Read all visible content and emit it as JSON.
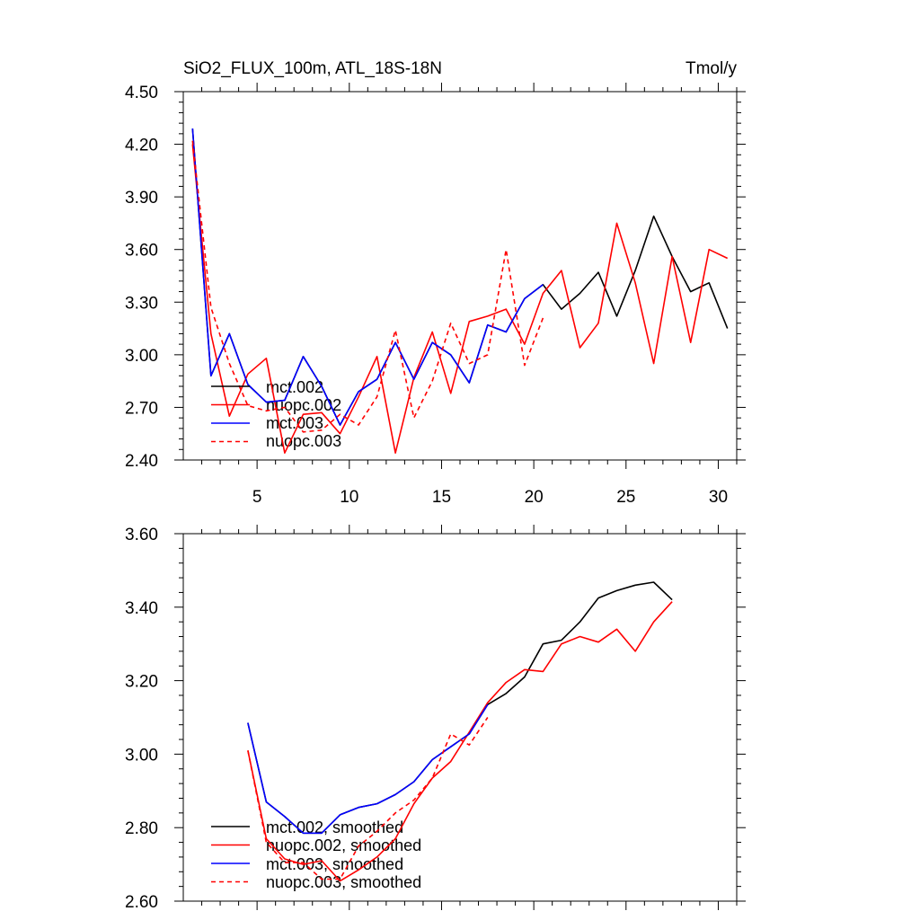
{
  "chart_data": [
    {
      "type": "line",
      "title": "SiO2_FLUX_100m, ATL_18S-18N",
      "units": "Tmol/y",
      "xlim": [
        1,
        31
      ],
      "ylim": [
        2.4,
        4.5
      ],
      "x_ticks": [
        5,
        10,
        15,
        20,
        25,
        30
      ],
      "x_tick_labels": [
        "5",
        "10",
        "15",
        "20",
        "25",
        "30"
      ],
      "y_ticks": [
        2.4,
        2.7,
        3.0,
        3.3,
        3.6,
        3.9,
        4.2,
        4.5
      ],
      "y_tick_labels": [
        "2.40",
        "2.70",
        "3.00",
        "3.30",
        "3.60",
        "3.90",
        "4.20",
        "4.50"
      ],
      "legend_position": "bottom-left",
      "series": [
        {
          "name": "mct.002",
          "color": "#000000",
          "dash": "solid",
          "x": [
            1.5,
            2.5,
            3.5,
            4.5,
            5.5,
            6.5,
            7.5,
            8.5,
            9.5,
            10.5,
            11.5,
            12.5,
            13.5,
            14.5,
            15.5,
            16.5,
            17.5,
            18.5,
            19.5,
            20.5,
            21.5,
            22.5,
            23.5,
            24.5,
            25.5,
            26.5,
            27.5,
            28.5,
            29.5,
            30.5
          ],
          "values": [
            4.29,
            2.88,
            3.12,
            2.83,
            2.73,
            2.74,
            2.99,
            2.82,
            2.6,
            2.79,
            2.86,
            3.07,
            2.86,
            3.07,
            3.0,
            2.84,
            3.17,
            3.13,
            3.32,
            3.4,
            3.26,
            3.35,
            3.47,
            3.22,
            3.48,
            3.79,
            3.56,
            3.36,
            3.41,
            3.15
          ]
        },
        {
          "name": "nuopc.002",
          "color": "#ff0000",
          "dash": "solid",
          "x": [
            1.5,
            2.5,
            3.5,
            4.5,
            5.5,
            6.5,
            7.5,
            8.5,
            9.5,
            10.5,
            11.5,
            12.5,
            13.5,
            14.5,
            15.5,
            16.5,
            17.5,
            18.5,
            19.5,
            20.5,
            21.5,
            22.5,
            23.5,
            24.5,
            25.5,
            26.5,
            27.5,
            28.5,
            29.5,
            30.5
          ],
          "values": [
            4.2,
            3.12,
            2.65,
            2.89,
            2.98,
            2.44,
            2.66,
            2.67,
            2.55,
            2.76,
            2.99,
            2.44,
            2.87,
            3.13,
            2.78,
            3.19,
            3.22,
            3.26,
            3.06,
            3.35,
            3.48,
            3.04,
            3.18,
            3.75,
            3.41,
            2.95,
            3.56,
            3.07,
            3.6,
            3.55
          ]
        },
        {
          "name": "mct.003",
          "color": "#0000ff",
          "dash": "solid",
          "x": [
            1.5,
            2.5,
            3.5,
            4.5,
            5.5,
            6.5,
            7.5,
            8.5,
            9.5,
            10.5,
            11.5,
            12.5,
            13.5,
            14.5,
            15.5,
            16.5,
            17.5,
            18.5,
            19.5,
            20.5
          ],
          "values": [
            4.29,
            2.88,
            3.12,
            2.83,
            2.73,
            2.74,
            2.99,
            2.82,
            2.6,
            2.79,
            2.86,
            3.07,
            2.86,
            3.07,
            3.0,
            2.84,
            3.17,
            3.13,
            3.32,
            3.4
          ]
        },
        {
          "name": "nuopc.003",
          "color": "#ff0000",
          "dash": "dashed",
          "x": [
            1.5,
            2.5,
            3.5,
            4.5,
            5.5,
            6.5,
            7.5,
            8.5,
            9.5,
            10.5,
            11.5,
            12.5,
            13.5,
            14.5,
            15.5,
            16.5,
            17.5,
            18.5,
            19.5,
            20.5
          ],
          "values": [
            4.22,
            3.27,
            2.95,
            2.71,
            2.68,
            2.7,
            2.56,
            2.57,
            2.66,
            2.6,
            2.76,
            3.14,
            2.64,
            2.85,
            3.18,
            2.95,
            3.0,
            3.6,
            2.94,
            3.21
          ]
        }
      ]
    },
    {
      "type": "line",
      "title": "",
      "xlim": [
        1,
        31
      ],
      "ylim": [
        2.6,
        3.6
      ],
      "x_ticks": [
        5,
        10,
        15,
        20,
        25,
        30
      ],
      "x_tick_labels": [],
      "y_ticks": [
        2.6,
        2.8,
        3.0,
        3.2,
        3.4,
        3.6
      ],
      "y_tick_labels": [
        "2.60",
        "2.80",
        "3.00",
        "3.20",
        "3.40",
        "3.60"
      ],
      "legend_position": "bottom-left",
      "series": [
        {
          "name": "mct.002, smoothed",
          "color": "#000000",
          "dash": "solid",
          "x": [
            4.5,
            5.5,
            6.5,
            7.5,
            8.5,
            9.5,
            10.5,
            11.5,
            12.5,
            13.5,
            14.5,
            15.5,
            16.5,
            17.5,
            18.5,
            19.5,
            20.5,
            21.5,
            22.5,
            23.5,
            24.5,
            25.5,
            26.5,
            27.5
          ],
          "values": [
            3.085,
            2.87,
            2.83,
            2.785,
            2.785,
            2.835,
            2.855,
            2.865,
            2.89,
            2.925,
            2.985,
            3.02,
            3.055,
            3.135,
            3.165,
            3.21,
            3.3,
            3.31,
            3.36,
            3.425,
            3.445,
            3.46,
            3.468,
            3.42
          ]
        },
        {
          "name": "nuopc.002, smoothed",
          "color": "#ff0000",
          "dash": "solid",
          "x": [
            4.5,
            5.5,
            6.5,
            7.5,
            8.5,
            9.5,
            10.5,
            11.5,
            12.5,
            13.5,
            14.5,
            15.5,
            16.5,
            17.5,
            18.5,
            19.5,
            20.5,
            21.5,
            22.5,
            23.5,
            24.5,
            25.5,
            26.5,
            27.5
          ],
          "values": [
            3.01,
            2.77,
            2.715,
            2.7,
            2.71,
            2.655,
            2.685,
            2.72,
            2.77,
            2.865,
            2.935,
            2.98,
            3.06,
            3.14,
            3.195,
            3.23,
            3.225,
            3.3,
            3.32,
            3.305,
            3.34,
            3.28,
            3.36,
            3.415
          ]
        },
        {
          "name": "mct.003, smoothed",
          "color": "#0000ff",
          "dash": "solid",
          "x": [
            4.5,
            5.5,
            6.5,
            7.5,
            8.5,
            9.5,
            10.5,
            11.5,
            12.5,
            13.5,
            14.5,
            15.5,
            16.5,
            17.5
          ],
          "values": [
            3.085,
            2.87,
            2.83,
            2.785,
            2.785,
            2.835,
            2.855,
            2.865,
            2.89,
            2.925,
            2.985,
            3.02,
            3.055,
            3.135
          ]
        },
        {
          "name": "nuopc.003, smoothed",
          "color": "#ff0000",
          "dash": "dashed",
          "x": [
            4.5,
            5.5,
            6.5,
            7.5,
            8.5,
            9.5,
            10.5,
            11.5,
            12.5,
            13.5,
            14.5,
            15.5,
            16.5,
            17.5
          ],
          "values": [
            3.01,
            2.76,
            2.705,
            2.705,
            2.66,
            2.66,
            2.75,
            2.79,
            2.84,
            2.875,
            2.935,
            3.055,
            3.025,
            3.1
          ]
        }
      ]
    }
  ]
}
